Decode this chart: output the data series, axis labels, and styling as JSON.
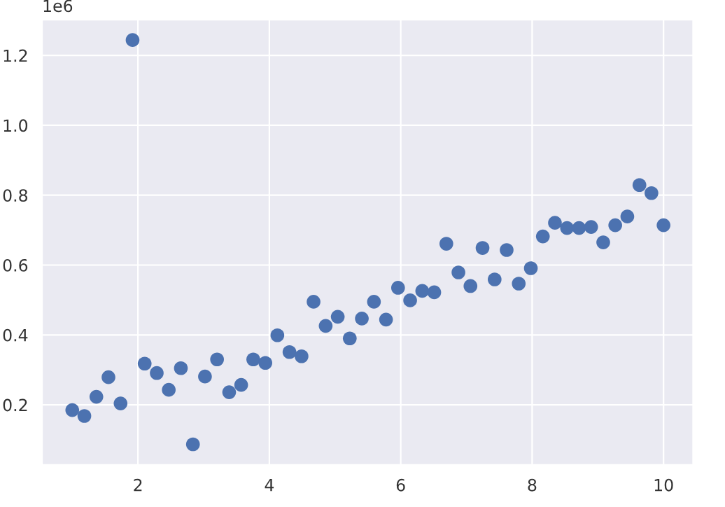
{
  "chart_data": {
    "type": "scatter",
    "marker": "circle",
    "grid": true,
    "legend": false,
    "x": [
      1.0,
      1.184,
      1.367,
      1.551,
      1.735,
      1.918,
      2.102,
      2.286,
      2.469,
      2.653,
      2.837,
      3.02,
      3.204,
      3.388,
      3.571,
      3.755,
      3.939,
      4.122,
      4.306,
      4.49,
      4.673,
      4.857,
      5.041,
      5.224,
      5.408,
      5.592,
      5.776,
      5.959,
      6.143,
      6.327,
      6.51,
      6.694,
      6.878,
      7.061,
      7.245,
      7.429,
      7.612,
      7.796,
      7.98,
      8.163,
      8.347,
      8.531,
      8.714,
      8.898,
      9.082,
      9.265,
      9.449,
      9.633,
      9.816,
      10.0
    ],
    "series": [
      {
        "color": "#4c72b0",
        "values": [
          0.185,
          0.168,
          0.223,
          0.279,
          0.204,
          1.244,
          0.318,
          0.291,
          0.243,
          0.305,
          0.087,
          0.281,
          0.33,
          0.236,
          0.257,
          0.33,
          0.32,
          0.399,
          0.351,
          0.339,
          0.495,
          0.426,
          0.452,
          0.39,
          0.447,
          0.495,
          0.444,
          0.535,
          0.499,
          0.526,
          0.522,
          0.661,
          0.579,
          0.54,
          0.649,
          0.559,
          0.643,
          0.547,
          0.591,
          0.682,
          0.721,
          0.706,
          0.706,
          0.709,
          0.665,
          0.714,
          0.739,
          0.829,
          0.806,
          0.714
        ]
      }
    ],
    "xlim": [
      0.54,
      10.45
    ],
    "ylim": [
      0.028,
      1.302
    ],
    "xticks": [
      2,
      4,
      6,
      8,
      10
    ],
    "yticks": [
      0.2,
      0.4,
      0.6,
      0.8,
      {
        "value": 1,
        "label": "1.0"
      },
      1.2
    ],
    "annotations": [
      "1e6"
    ]
  }
}
